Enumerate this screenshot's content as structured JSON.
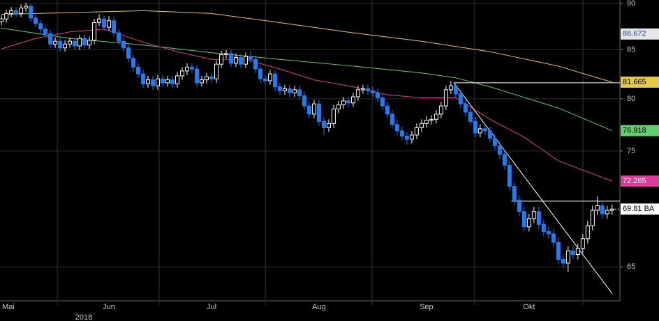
{
  "chart_data": {
    "type": "candlestick",
    "year_label": "2018",
    "categories": [
      "Mai",
      null,
      null,
      null,
      null,
      null,
      null,
      null,
      null,
      null,
      null,
      null,
      null,
      null,
      null,
      null,
      null,
      null,
      null,
      null,
      null,
      null,
      "Jun",
      null,
      null,
      null,
      null,
      null,
      null,
      null,
      null,
      null,
      null,
      null,
      null,
      null,
      null,
      null,
      null,
      null,
      null,
      null,
      null,
      "Jul",
      null,
      null,
      null,
      null,
      null,
      null,
      null,
      null,
      null,
      null,
      null,
      null,
      null,
      null,
      null,
      null,
      null,
      null,
      null,
      null,
      null,
      "Aug",
      null,
      null,
      null,
      null,
      null,
      null,
      null,
      null,
      null,
      null,
      null,
      null,
      null,
      null,
      null,
      null,
      null,
      null,
      null,
      null,
      null,
      "Sep",
      null,
      null,
      null,
      null,
      null,
      null,
      null,
      null,
      null,
      null,
      null,
      null,
      null,
      null,
      null,
      null,
      null,
      null,
      null,
      null,
      "Okt",
      null,
      null,
      null,
      null,
      null,
      null,
      null,
      null,
      null,
      null,
      null,
      null,
      null,
      null,
      null,
      null,
      null
    ],
    "open": [
      88.0,
      88.3,
      88.9,
      89.2,
      88.9,
      89.5,
      89.7,
      88.4,
      87.8,
      87.2,
      86.7,
      85.6,
      85.9,
      85.2,
      85.6,
      85.9,
      85.4,
      86.2,
      85.5,
      86.0,
      87.9,
      88.3,
      87.4,
      88.1,
      86.8,
      85.9,
      85.2,
      84.1,
      83.2,
      82.5,
      81.5,
      81.9,
      81.3,
      82.0,
      81.6,
      81.9,
      81.5,
      82.3,
      82.8,
      83.2,
      83.0,
      81.6,
      81.9,
      82.2,
      82.0,
      83.5,
      84.5,
      84.6,
      83.6,
      84.2,
      83.5,
      84.3,
      84.0,
      83.0,
      82.0,
      81.8,
      82.5,
      81.2,
      80.8,
      81.0,
      80.6,
      80.9,
      80.3,
      79.3,
      78.5,
      79.5,
      77.8,
      77.2,
      77.6,
      79.0,
      79.4,
      79.8,
      79.6,
      80.2,
      80.9,
      81.0,
      80.8,
      80.6,
      80.1,
      79.3,
      78.5,
      77.5,
      76.9,
      76.4,
      76.1,
      76.5,
      77.2,
      77.6,
      77.9,
      78.0,
      78.5,
      79.3,
      80.9,
      81.3,
      80.5,
      79.5,
      78.7,
      77.8,
      76.7,
      77.1,
      76.9,
      76.2,
      75.5,
      74.7,
      73.7,
      71.8,
      70.6,
      69.6,
      68.3,
      69.0,
      69.6,
      68.5,
      67.9,
      67.7,
      67.0,
      65.6,
      65.3,
      66.3,
      66.0,
      66.5,
      67.3,
      68.4,
      69.7,
      70.1,
      69.4,
      69.7
    ],
    "close": [
      88.3,
      88.9,
      89.2,
      88.9,
      89.5,
      89.7,
      88.4,
      87.8,
      87.2,
      86.7,
      85.6,
      85.9,
      85.2,
      85.6,
      85.9,
      85.4,
      86.2,
      85.5,
      86.0,
      87.9,
      88.3,
      87.4,
      88.1,
      86.8,
      85.9,
      85.2,
      84.1,
      83.2,
      82.5,
      81.5,
      81.9,
      81.3,
      82.0,
      81.6,
      81.9,
      81.5,
      82.3,
      82.8,
      83.2,
      83.0,
      81.6,
      81.9,
      82.2,
      82.0,
      83.5,
      84.5,
      84.6,
      83.6,
      84.2,
      83.5,
      84.3,
      84.0,
      83.0,
      82.0,
      81.8,
      82.5,
      81.2,
      80.8,
      81.0,
      80.6,
      80.9,
      80.3,
      79.3,
      78.5,
      79.5,
      77.8,
      77.2,
      77.6,
      79.0,
      79.4,
      79.8,
      79.6,
      80.2,
      80.9,
      81.0,
      80.8,
      80.6,
      80.1,
      79.3,
      78.5,
      77.5,
      76.9,
      76.4,
      76.1,
      76.5,
      77.2,
      77.6,
      77.9,
      78.0,
      78.5,
      79.3,
      80.9,
      81.3,
      80.5,
      79.5,
      78.7,
      77.8,
      76.7,
      77.1,
      76.9,
      76.2,
      75.5,
      74.7,
      73.7,
      71.8,
      70.6,
      69.6,
      68.3,
      69.0,
      69.6,
      68.5,
      67.9,
      67.7,
      67.0,
      65.6,
      65.3,
      66.3,
      66.0,
      66.5,
      67.3,
      68.4,
      69.7,
      70.1,
      69.4,
      69.7,
      69.81
    ],
    "high": [
      88.7,
      89.3,
      89.6,
      89.6,
      89.9,
      90.1,
      90.0,
      88.8,
      88.2,
      87.6,
      87.1,
      86.3,
      86.3,
      86.0,
      86.3,
      86.3,
      86.6,
      86.6,
      86.4,
      88.3,
      88.8,
      88.7,
      88.6,
      88.5,
      87.2,
      86.3,
      85.6,
      84.5,
      83.6,
      82.9,
      82.3,
      82.3,
      82.4,
      82.4,
      82.3,
      82.3,
      82.7,
      83.2,
      83.6,
      83.6,
      83.4,
      82.3,
      82.6,
      82.6,
      83.9,
      84.9,
      85.0,
      85.0,
      84.6,
      84.6,
      84.7,
      84.9,
      84.4,
      83.4,
      82.4,
      82.9,
      82.9,
      81.6,
      81.4,
      81.4,
      81.3,
      81.3,
      80.7,
      79.7,
      79.9,
      79.9,
      78.2,
      78.0,
      79.4,
      79.8,
      80.2,
      80.2,
      80.6,
      81.3,
      81.4,
      81.4,
      81.2,
      81.0,
      80.5,
      79.7,
      78.9,
      77.9,
      77.3,
      76.8,
      76.9,
      77.6,
      78.0,
      78.3,
      78.4,
      78.9,
      79.7,
      81.3,
      81.8,
      81.7,
      80.9,
      79.9,
      79.1,
      78.2,
      77.5,
      77.5,
      77.3,
      76.6,
      75.9,
      75.1,
      74.1,
      72.2,
      71.0,
      70.0,
      69.4,
      70.0,
      70.0,
      68.9,
      68.3,
      68.1,
      67.4,
      66.0,
      66.7,
      66.7,
      66.9,
      67.7,
      68.8,
      70.1,
      70.9,
      70.5,
      70.1,
      70.2
    ],
    "low": [
      87.6,
      87.9,
      88.5,
      88.5,
      88.5,
      89.1,
      88.0,
      87.4,
      86.8,
      86.3,
      85.2,
      85.2,
      84.8,
      84.8,
      85.2,
      85.0,
      85.0,
      85.1,
      85.1,
      85.6,
      87.5,
      87.0,
      87.0,
      86.4,
      85.5,
      84.8,
      83.7,
      82.8,
      82.1,
      81.1,
      81.1,
      80.9,
      80.9,
      81.2,
      81.2,
      81.1,
      81.1,
      81.9,
      82.4,
      82.6,
      81.2,
      81.2,
      81.5,
      81.6,
      81.6,
      83.1,
      84.1,
      83.2,
      83.2,
      83.1,
      83.1,
      83.6,
      82.6,
      81.6,
      81.4,
      81.4,
      80.8,
      80.4,
      80.4,
      80.2,
      80.2,
      79.9,
      78.9,
      78.1,
      78.1,
      77.4,
      76.5,
      76.8,
      77.2,
      78.6,
      79.0,
      79.2,
      79.2,
      79.8,
      80.5,
      80.4,
      80.2,
      79.7,
      78.9,
      78.1,
      77.1,
      76.5,
      76.0,
      75.6,
      75.7,
      76.1,
      76.8,
      77.2,
      77.5,
      77.6,
      78.1,
      78.9,
      80.5,
      80.1,
      79.1,
      78.3,
      77.4,
      76.3,
      76.3,
      76.5,
      75.8,
      75.1,
      74.3,
      73.3,
      71.4,
      70.2,
      69.2,
      67.9,
      67.9,
      68.6,
      68.1,
      67.5,
      67.3,
      66.6,
      65.2,
      64.9,
      64.6,
      65.6,
      65.6,
      66.1,
      66.9,
      68.0,
      69.3,
      69.0,
      69.0,
      69.3
    ],
    "up_color": "#ffffff",
    "down_color": "#1f7cf5",
    "overlays": [
      {
        "color": "#e8c84a",
        "x": [
          0,
          29,
          43,
          57,
          72,
          86,
          100,
          114,
          125
        ],
        "values": [
          88.8,
          89.2,
          88.9,
          87.9,
          86.8,
          85.9,
          84.8,
          83.3,
          81.665
        ]
      },
      {
        "color": "#5fcf6a",
        "x": [
          0,
          14,
          29,
          43,
          57,
          72,
          86,
          93,
          100,
          114,
          125
        ],
        "values": [
          87.3,
          86.2,
          85.5,
          84.7,
          84.0,
          83.3,
          82.6,
          82.1,
          81.2,
          79.1,
          76.918
        ]
      },
      {
        "color": "#e0399a",
        "x": [
          0,
          7,
          14,
          21,
          29,
          36,
          43,
          50,
          57,
          64,
          72,
          79,
          86,
          93,
          100,
          107,
          114,
          125
        ],
        "values": [
          85.1,
          86.2,
          86.9,
          87.2,
          85.8,
          84.8,
          84.0,
          84.0,
          83.0,
          81.9,
          81.2,
          80.4,
          80.1,
          80.1,
          78.0,
          76.3,
          74.1,
          72.265
        ]
      }
    ],
    "lines": [
      {
        "color": "#ffffff",
        "x": [
          92.6,
          126.6
        ],
        "values": [
          81.6,
          81.6
        ]
      },
      {
        "color": "#ffffff",
        "x": [
          92.6,
          125
        ],
        "values": [
          81.6,
          62.9
        ]
      },
      {
        "color": "#ffffff",
        "x": [
          104.4,
          126.6
        ],
        "values": [
          70.5,
          70.5
        ]
      }
    ],
    "marker_label": {
      "value": 86.672,
      "label": "86.672"
    },
    "last_price": {
      "value": 69.81,
      "label": "69.81 BA"
    },
    "xlim": [
      -0.3,
      126.6
    ],
    "ylim": [
      62.33,
      90.39
    ],
    "log_scale": true,
    "yticks": [
      65,
      75,
      80,
      85,
      90
    ],
    "grid": true
  }
}
